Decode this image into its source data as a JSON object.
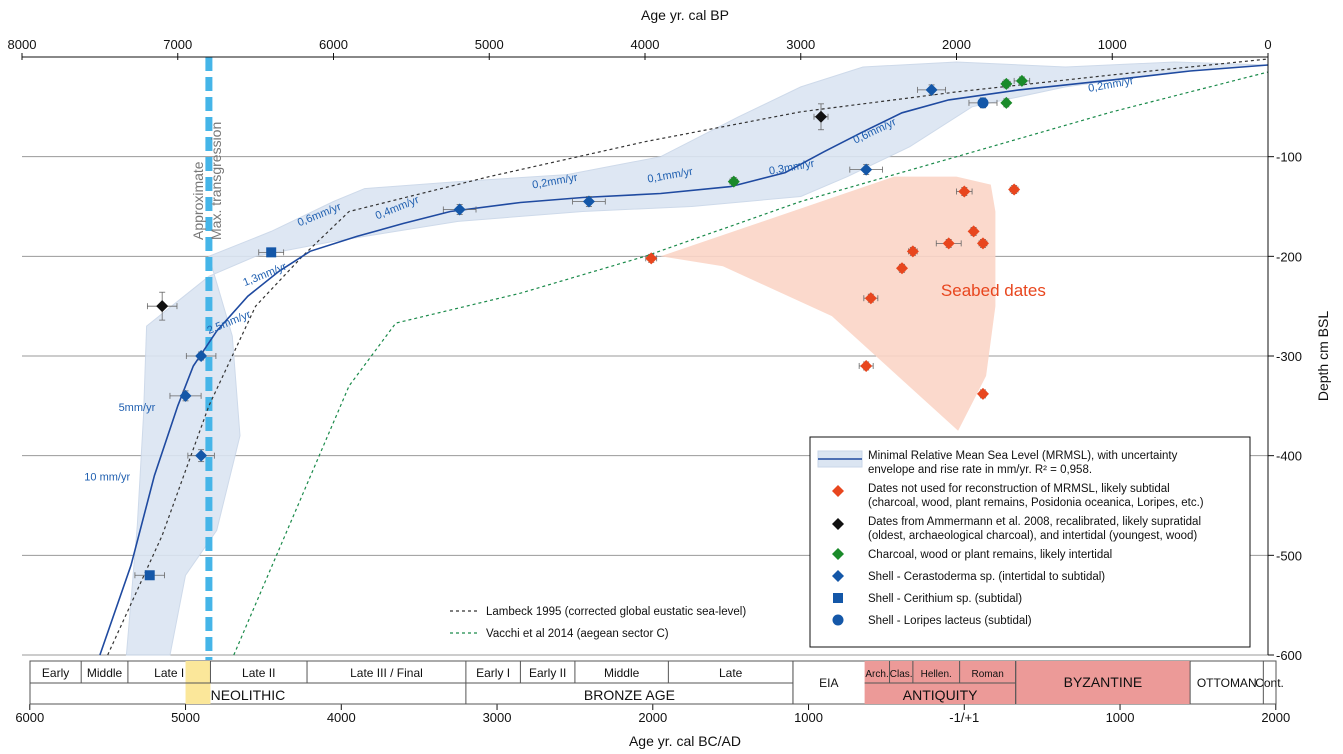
{
  "chart_data": {
    "type": "scatter",
    "x_top": {
      "label": "Age yr. cal BP",
      "ticks": [
        "8000",
        "7000",
        "6000",
        "5000",
        "4000",
        "3000",
        "2000",
        "1000",
        "0"
      ]
    },
    "x_bottom": {
      "label": "Age yr. cal BC/AD",
      "ticks": [
        "6000",
        "5000",
        "4000",
        "3000",
        "2000",
        "1000",
        "-1/+1",
        "1000",
        "2000"
      ]
    },
    "y": {
      "label": "Depth cm BSL",
      "ticks": [
        "-100",
        "-200",
        "-300",
        "-400",
        "-500",
        "-600"
      ],
      "range": [
        -600,
        0
      ]
    },
    "transgression_label": [
      "Approximate",
      "Max. transgression"
    ],
    "transgression_bp": 6800,
    "seabed_label": "Seabed dates",
    "rates": [
      {
        "text": "10 mm/yr",
        "bp": 7600,
        "depth": -425
      },
      {
        "text": "5mm/yr",
        "bp": 7380,
        "depth": -355
      },
      {
        "text": "2,5mm/yr",
        "bp": 6800,
        "depth": -278
      },
      {
        "text": "1,3mm/yr",
        "bp": 6570,
        "depth": -230
      },
      {
        "text": "0,6mm/yr",
        "bp": 6220,
        "depth": -170
      },
      {
        "text": "0,4mm/yr",
        "bp": 5720,
        "depth": -163
      },
      {
        "text": "0,2mm/yr",
        "bp": 4720,
        "depth": -132
      },
      {
        "text": "0,1mm/yr",
        "bp": 3980,
        "depth": -126
      },
      {
        "text": "0,3mm/yr",
        "bp": 3200,
        "depth": -118
      },
      {
        "text": "0,6mm/yr",
        "bp": 2650,
        "depth": -87
      },
      {
        "text": "0,2mm/yr",
        "bp": 1150,
        "depth": -35
      }
    ],
    "mrmsl_curve": [
      [
        7500,
        -600
      ],
      [
        7300,
        -510
      ],
      [
        7150,
        -420
      ],
      [
        7000,
        -350
      ],
      [
        6900,
        -310
      ],
      [
        6750,
        -275
      ],
      [
        6550,
        -240
      ],
      [
        6350,
        -215
      ],
      [
        6150,
        -195
      ],
      [
        5850,
        -180
      ],
      [
        5550,
        -167
      ],
      [
        5250,
        -155
      ],
      [
        4800,
        -146
      ],
      [
        4400,
        -141
      ],
      [
        3900,
        -137
      ],
      [
        3450,
        -130
      ],
      [
        3100,
        -116
      ],
      [
        2850,
        -95
      ],
      [
        2600,
        -75
      ],
      [
        2350,
        -56
      ],
      [
        2050,
        -43
      ],
      [
        1600,
        -33
      ],
      [
        1000,
        -23
      ],
      [
        500,
        -14
      ],
      [
        0,
        -8
      ]
    ],
    "envelope_upper": [
      [
        7330,
        -600
      ],
      [
        7260,
        -470
      ],
      [
        7220,
        -360
      ],
      [
        7200,
        -270
      ],
      [
        7000,
        -245
      ],
      [
        6800,
        -220
      ],
      [
        6500,
        -200
      ],
      [
        6000,
        -185
      ],
      [
        5200,
        -165
      ],
      [
        4400,
        -155
      ],
      [
        3700,
        -150
      ],
      [
        3000,
        -140
      ],
      [
        2700,
        -120
      ],
      [
        2300,
        -90
      ],
      [
        1900,
        -50
      ],
      [
        1300,
        -30
      ],
      [
        600,
        -15
      ],
      [
        0,
        -8
      ]
    ],
    "envelope_lower": [
      [
        0,
        -8
      ],
      [
        600,
        -5
      ],
      [
        1300,
        -10
      ],
      [
        2000,
        -5
      ],
      [
        2600,
        -10
      ],
      [
        3000,
        -30
      ],
      [
        3400,
        -60
      ],
      [
        3900,
        -100
      ],
      [
        4500,
        -118
      ],
      [
        5200,
        -125
      ],
      [
        5800,
        -132
      ],
      [
        6000,
        -145
      ],
      [
        6400,
        -175
      ],
      [
        6800,
        -200
      ],
      [
        6650,
        -280
      ],
      [
        6600,
        -380
      ],
      [
        6750,
        -475
      ],
      [
        6950,
        -520
      ],
      [
        7050,
        -600
      ]
    ],
    "seabed_region": [
      [
        3900,
        -200
      ],
      [
        2400,
        -120
      ],
      [
        2000,
        -120
      ],
      [
        1780,
        -128
      ],
      [
        1750,
        -155
      ],
      [
        1750,
        -250
      ],
      [
        1810,
        -320
      ],
      [
        1990,
        -375
      ],
      [
        2800,
        -260
      ],
      [
        3500,
        -210
      ]
    ],
    "lambeck_1995": [
      [
        7450,
        -600
      ],
      [
        7100,
        -480
      ],
      [
        6800,
        -350
      ],
      [
        6500,
        -250
      ],
      [
        6200,
        -200
      ],
      [
        5900,
        -155
      ],
      [
        5000,
        -120
      ],
      [
        4000,
        -85
      ],
      [
        3000,
        -55
      ],
      [
        2000,
        -35
      ],
      [
        1000,
        -18
      ],
      [
        0,
        -2
      ]
    ],
    "vacchi_2014": [
      [
        6640,
        -600
      ],
      [
        5900,
        -330
      ],
      [
        5600,
        -267
      ],
      [
        4800,
        -237
      ],
      [
        4000,
        -200
      ],
      [
        3000,
        -145
      ],
      [
        2000,
        -100
      ],
      [
        1000,
        -55
      ],
      [
        0,
        -15
      ]
    ],
    "series": [
      {
        "name": "Dates not used for reconstruction of MRMSL, likely subtidal",
        "color": "#e8461e",
        "marker": "diamond",
        "points": [
          [
            3960,
            -202,
            70
          ],
          [
            2550,
            -242,
            90
          ],
          [
            2350,
            -212,
            40
          ],
          [
            2280,
            -195,
            55
          ],
          [
            2050,
            -187,
            160
          ],
          [
            1950,
            -135,
            100
          ],
          [
            1890,
            -175,
            40
          ],
          [
            1830,
            -187,
            50
          ],
          [
            1630,
            -133,
            50
          ],
          [
            2580,
            -310,
            90
          ],
          [
            1830,
            -338,
            40
          ]
        ]
      },
      {
        "name": "Dates from Ammermann et al. 2008",
        "color": "#111111",
        "marker": "diamond",
        "points": [
          [
            7100,
            -250,
            190,
            28
          ],
          [
            2870,
            -60,
            90,
            26
          ]
        ]
      },
      {
        "name": "Charcoal, wood or plant remains, likely intertidal",
        "color": "#1a8a2a",
        "marker": "diamond",
        "points": [
          [
            3430,
            -125,
            50
          ],
          [
            1680,
            -27,
            50
          ],
          [
            1580,
            -24,
            100
          ],
          [
            1680,
            -46,
            30
          ]
        ]
      },
      {
        "name": "Shell - Cerastoderma sp. (intertidal to subtidal)",
        "color": "#1457a8",
        "marker": "diamond",
        "points": [
          [
            6850,
            -300,
            190,
            8
          ],
          [
            6950,
            -340,
            200,
            10
          ],
          [
            6850,
            -400,
            170,
            12
          ],
          [
            5190,
            -153,
            210,
            10
          ],
          [
            4360,
            -145,
            210,
            10
          ],
          [
            2580,
            -113,
            210,
            10
          ],
          [
            2160,
            -33,
            180,
            10
          ]
        ]
      },
      {
        "name": "Shell - Cerithium sp. (subtidal)",
        "color": "#1457a8",
        "marker": "square",
        "points": [
          [
            6400,
            -196,
            160,
            8
          ],
          [
            7180,
            -520,
            190,
            6
          ]
        ]
      },
      {
        "name": "Shell - Loripes lacteus (subtidal)",
        "color": "#1457a8",
        "marker": "circle",
        "points": [
          [
            1830,
            -46,
            180,
            10
          ]
        ]
      }
    ],
    "legend": [
      {
        "kind": "envelope",
        "lines": [
          "Minimal Relative Mean Sea Level (MRMSL), with uncertainty",
          "envelope and rise rate in mm/yr. R² = 0,958."
        ]
      },
      {
        "kind": "diamond",
        "color": "#e8461e",
        "lines": [
          "Dates not used for reconstruction of MRMSL, likely subtidal",
          "(charcoal, wood, plant remains, Posidonia oceanica, Loripes, etc.)"
        ]
      },
      {
        "kind": "diamond",
        "color": "#111111",
        "lines": [
          "Dates from Ammermann et al. 2008, recalibrated, likely supratidal",
          "(oldest, archaeological charcoal), and intertidal (youngest, wood)"
        ]
      },
      {
        "kind": "diamond",
        "color": "#1a8a2a",
        "lines": [
          "Charcoal, wood or plant remains, likely intertidal"
        ]
      },
      {
        "kind": "diamond",
        "color": "#1457a8",
        "lines": [
          "Shell - Cerastoderma sp. (intertidal to subtidal)"
        ]
      },
      {
        "kind": "square",
        "color": "#1457a8",
        "lines": [
          "Shell - Cerithium sp. (subtidal)"
        ]
      },
      {
        "kind": "circle",
        "color": "#1457a8",
        "lines": [
          "Shell - Loripes lacteus (subtidal)"
        ]
      }
    ],
    "line_legend": [
      {
        "color": "#333333",
        "text": "Lambeck 1995 (corrected global eustatic sea-level)"
      },
      {
        "color": "#1a8a4a",
        "text": "Vacchi et al 2014 (aegean sector C)"
      }
    ],
    "periods_top": [
      {
        "from": -6000,
        "to": -5670,
        "label": "Early"
      },
      {
        "from": -5670,
        "to": -5370,
        "label": "Middle"
      },
      {
        "from": -5370,
        "to": -4840,
        "label": "Late I"
      },
      {
        "from": -4840,
        "to": -4220,
        "label": "Late II"
      },
      {
        "from": -4220,
        "to": -3200,
        "label": "Late III / Final"
      },
      {
        "from": -3200,
        "to": -2850,
        "label": "Early I"
      },
      {
        "from": -2850,
        "to": -2500,
        "label": "Early II"
      },
      {
        "from": -2500,
        "to": -1900,
        "label": "Middle"
      },
      {
        "from": -1900,
        "to": -1100,
        "label": "Late"
      },
      {
        "from": -640,
        "to": -480,
        "label": "Arch."
      },
      {
        "from": -480,
        "to": -330,
        "label": "Clas."
      },
      {
        "from": -330,
        "to": -30,
        "label": "Hellen."
      },
      {
        "from": -30,
        "to": 330,
        "label": "Roman"
      }
    ],
    "periods_bottom": [
      {
        "from": -6000,
        "to": -3200,
        "label": "NEOLITHIC"
      },
      {
        "from": -3200,
        "to": -1100,
        "label": "BRONZE AGE"
      },
      {
        "from": -640,
        "to": 330,
        "label": "ANTIQUITY"
      }
    ],
    "periods_full": [
      {
        "from": -1100,
        "to": -640,
        "label": "EIA"
      },
      {
        "from": 330,
        "to": 1450,
        "label": "BYZANTINE"
      },
      {
        "from": 1450,
        "to": 1920,
        "label": "OTTOMAN"
      },
      {
        "from": 1920,
        "to": 2000,
        "label": "Cont."
      }
    ],
    "colors": {
      "antiquity": "#ec9a98",
      "antiquity_light": "#f2b1ae",
      "neolithic_highlight": "#fbe79a",
      "envelope": "#dbe5f2",
      "seabed": "#fbd5c6",
      "transgression": "#45b5e8",
      "grid": "#999999"
    }
  }
}
